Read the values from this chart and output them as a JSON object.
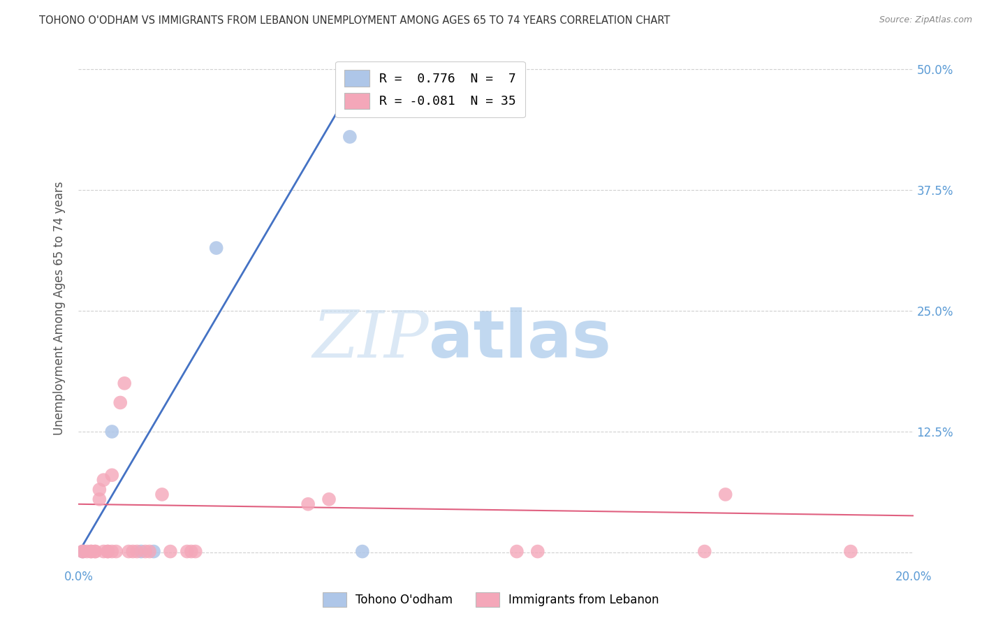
{
  "title": "TOHONO O'ODHAM VS IMMIGRANTS FROM LEBANON UNEMPLOYMENT AMONG AGES 65 TO 74 YEARS CORRELATION CHART",
  "source": "Source: ZipAtlas.com",
  "ylabel": "Unemployment Among Ages 65 to 74 years",
  "x_min": 0.0,
  "x_max": 0.2,
  "y_min": -0.015,
  "y_max": 0.52,
  "x_ticks": [
    0.0,
    0.05,
    0.1,
    0.15,
    0.2
  ],
  "x_tick_labels": [
    "0.0%",
    "",
    "",
    "",
    "20.0%"
  ],
  "y_ticks": [
    0.0,
    0.125,
    0.25,
    0.375,
    0.5
  ],
  "y_tick_labels": [
    "",
    "12.5%",
    "25.0%",
    "37.5%",
    "50.0%"
  ],
  "background_color": "#ffffff",
  "grid_color": "#d0d0d0",
  "blue_color": "#aec6e8",
  "pink_color": "#f4a7b9",
  "blue_line_color": "#4472c4",
  "pink_line_color": "#e06080",
  "legend_blue_label": "R =  0.776  N =  7",
  "legend_pink_label": "R = -0.081  N = 35",
  "legend_blue_series": "Tohono O'odham",
  "legend_pink_series": "Immigrants from Lebanon",
  "watermark_zip": "ZIP",
  "watermark_atlas": "atlas",
  "blue_points_x": [
    0.001,
    0.008,
    0.015,
    0.018,
    0.033,
    0.065,
    0.068
  ],
  "blue_points_y": [
    0.001,
    0.125,
    0.001,
    0.001,
    0.315,
    0.43,
    0.001
  ],
  "pink_points_x": [
    0.001,
    0.001,
    0.002,
    0.003,
    0.003,
    0.004,
    0.004,
    0.005,
    0.005,
    0.006,
    0.006,
    0.007,
    0.007,
    0.008,
    0.008,
    0.009,
    0.01,
    0.011,
    0.012,
    0.013,
    0.014,
    0.016,
    0.017,
    0.02,
    0.022,
    0.026,
    0.027,
    0.028,
    0.055,
    0.06,
    0.105,
    0.11,
    0.15,
    0.155,
    0.185
  ],
  "pink_points_y": [
    0.001,
    0.001,
    0.001,
    0.001,
    0.001,
    0.001,
    0.001,
    0.055,
    0.065,
    0.075,
    0.001,
    0.001,
    0.001,
    0.001,
    0.08,
    0.001,
    0.155,
    0.175,
    0.001,
    0.001,
    0.001,
    0.001,
    0.001,
    0.06,
    0.001,
    0.001,
    0.001,
    0.001,
    0.05,
    0.055,
    0.001,
    0.001,
    0.001,
    0.06,
    0.001
  ],
  "blue_trendline_x": [
    0.0,
    0.068
  ],
  "blue_trendline_y": [
    0.0,
    0.5
  ],
  "pink_trendline_x": [
    0.0,
    0.2
  ],
  "pink_trendline_y": [
    0.05,
    0.038
  ]
}
